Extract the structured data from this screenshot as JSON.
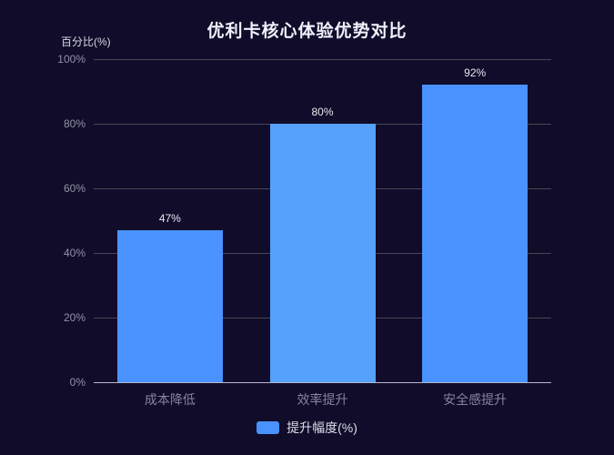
{
  "chart_data": {
    "type": "bar",
    "title": "优利卡核心体验优势对比",
    "xlabel": "",
    "ylabel": "百分比(%)",
    "categories": [
      "成本降低",
      "效率提升",
      "安全感提升"
    ],
    "series": [
      {
        "name": "提升幅度(%)",
        "values": [
          47,
          80,
          92
        ]
      }
    ],
    "value_labels": [
      "47%",
      "80%",
      "92%"
    ],
    "y_ticks": [
      "0%",
      "20%",
      "40%",
      "60%",
      "80%",
      "100%"
    ],
    "ylim": [
      0,
      100
    ],
    "grid": true,
    "legend_position": "bottom",
    "bar_colors": [
      "#4992ff",
      "#55a1fc",
      "#4992ff"
    ]
  },
  "palette": {
    "background": "#100c2a",
    "bar": "#4992ff",
    "bar_highlight": "#55a1fc",
    "gridline": "#484753",
    "axis_line": "#b9b8ce",
    "tick_text": "#9392a8",
    "category_text": "#86859c",
    "value_text": "#e6e8f2",
    "title_text": "#eef1fa",
    "axis_name_text": "#d7d8e4",
    "legend_text": "#dcdeea"
  }
}
